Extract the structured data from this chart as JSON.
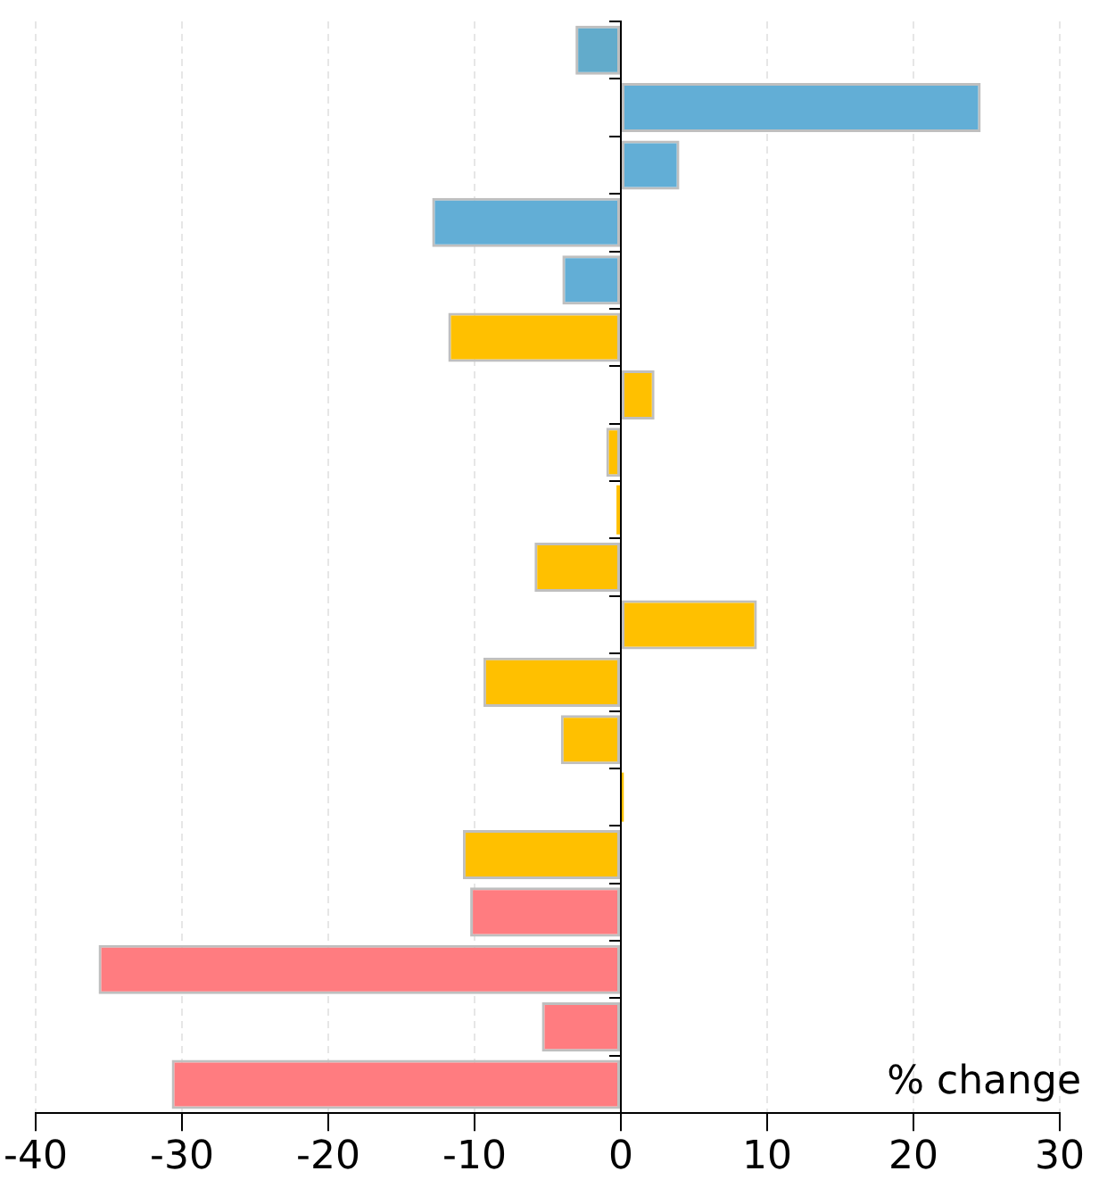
{
  "chart_data": {
    "type": "bar",
    "orientation": "horizontal",
    "xlabel": "% change",
    "categories": [
      null,
      null,
      null,
      null,
      null,
      null,
      null,
      null,
      null,
      null,
      null,
      null,
      null,
      null,
      null,
      null,
      null,
      null,
      null
    ],
    "values": [
      -3.1,
      24.6,
      4.0,
      -12.9,
      -4.0,
      -11.8,
      2.3,
      -1.0,
      -0.3,
      -5.9,
      9.3,
      -9.4,
      -4.1,
      0.2,
      -10.8,
      -10.3,
      -35.7,
      -5.4,
      -30.7
    ],
    "colors": [
      "#62abcb",
      "#62aed6",
      "#62aed6",
      "#62aed6",
      "#62aed6",
      "#ffc000",
      "#ffc000",
      "#ffc000",
      "#ffc000",
      "#ffc000",
      "#ffc000",
      "#ffc000",
      "#ffc000",
      "#ffc000",
      "#ffc000",
      "#ff7c80",
      "#ff7c80",
      "#ff7c80",
      "#ff7c80"
    ],
    "xlim": [
      -40,
      30
    ],
    "xticks": [
      -40,
      -30,
      -20,
      -10,
      0,
      10,
      20,
      30
    ],
    "grid": "x",
    "legend": false
  }
}
